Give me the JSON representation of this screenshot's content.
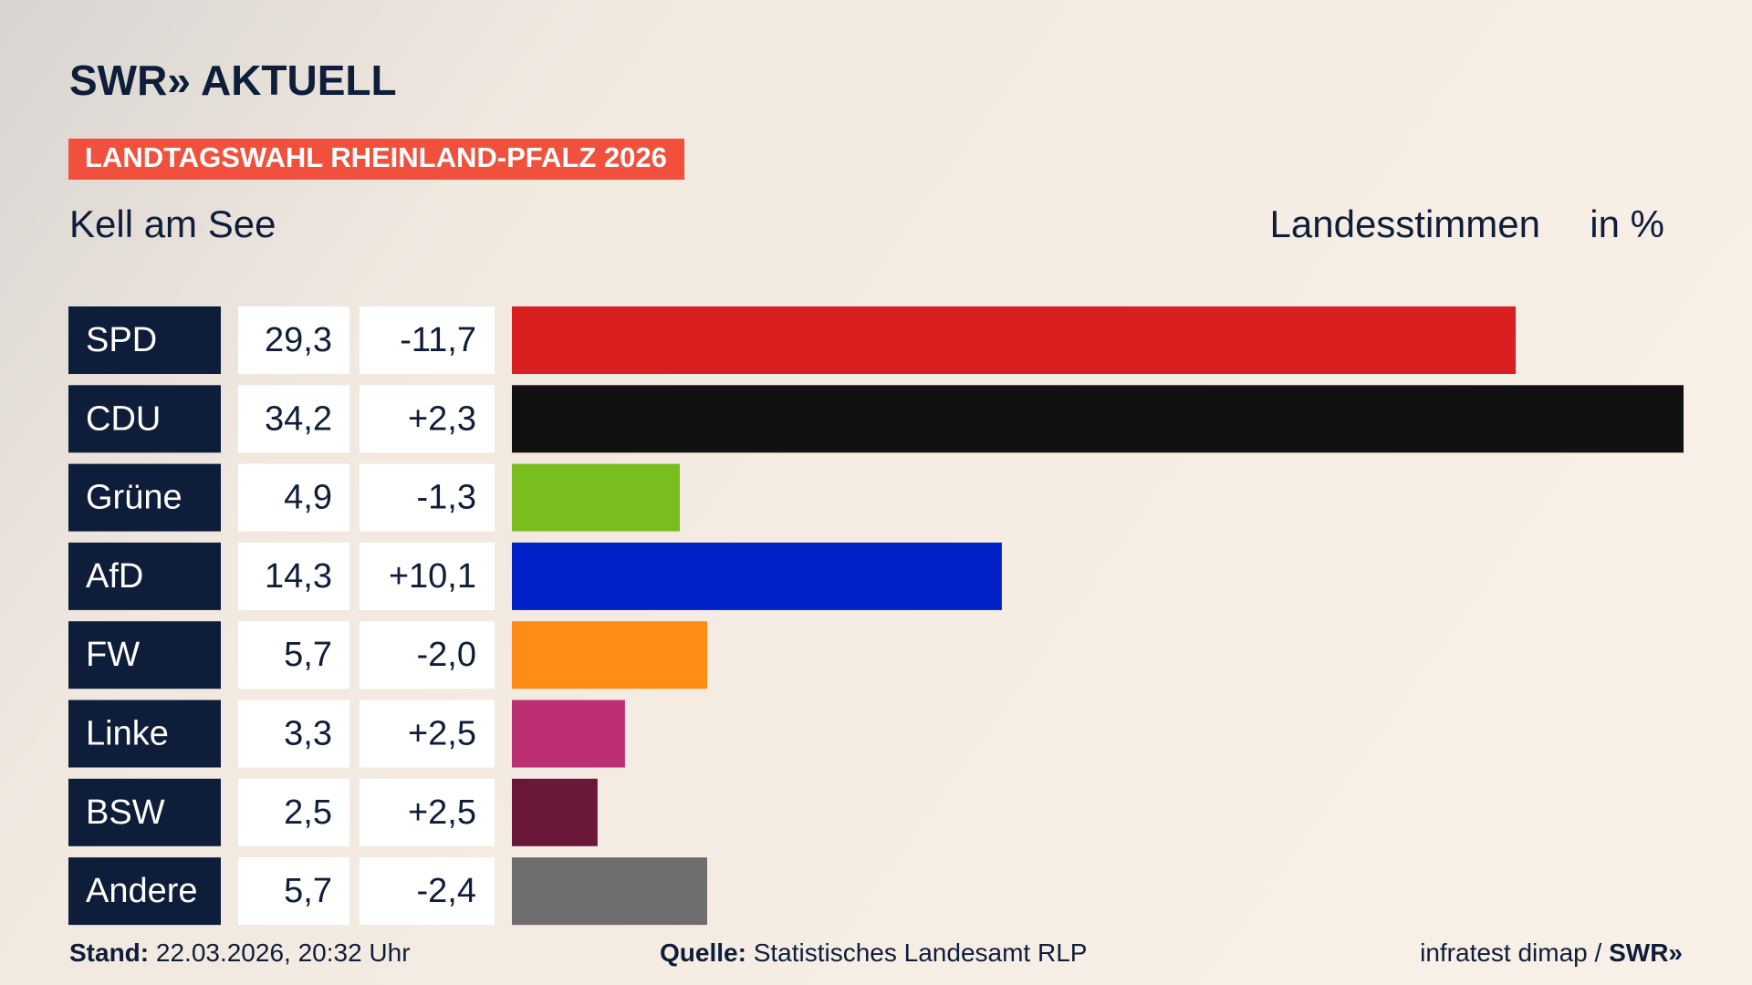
{
  "chart_data": {
    "type": "bar",
    "brand": "SWR» AKTUELL",
    "tag": "LANDTAGSWAHL RHEINLAND-PFALZ 2026",
    "title": "Kell am See",
    "subtitle": "Landesstimmen",
    "unit": "in %",
    "categories": [
      "SPD",
      "CDU",
      "Grüne",
      "AfD",
      "FW",
      "Linke",
      "BSW",
      "Andere"
    ],
    "values": [
      29.3,
      34.2,
      4.9,
      14.3,
      5.7,
      3.3,
      2.5,
      5.7
    ],
    "value_labels": [
      "29,3",
      "34,2",
      "4,9",
      "14,3",
      "5,7",
      "3,3",
      "2,5",
      "5,7"
    ],
    "changes": [
      -11.7,
      2.3,
      -1.3,
      10.1,
      -2.0,
      2.5,
      2.5,
      -2.4
    ],
    "change_labels": [
      "-11,7",
      "+2,3",
      "-1,3",
      "+10,1",
      "-2,0",
      "+2,5",
      "+2,5",
      "-2,4"
    ],
    "colors": [
      "#d91f1f",
      "#111111",
      "#7abd1f",
      "#0021c8",
      "#ff8c17",
      "#bd2f73",
      "#6a1739",
      "#6e6e70"
    ],
    "footer": {
      "stand_label": "Stand:",
      "stand": "22.03.2026, 20:32 Uhr",
      "source_label": "Quelle:",
      "source": "Statistisches Landesamt RLP",
      "credit": "infratest dimap /",
      "credit_brand": "SWR»"
    }
  }
}
